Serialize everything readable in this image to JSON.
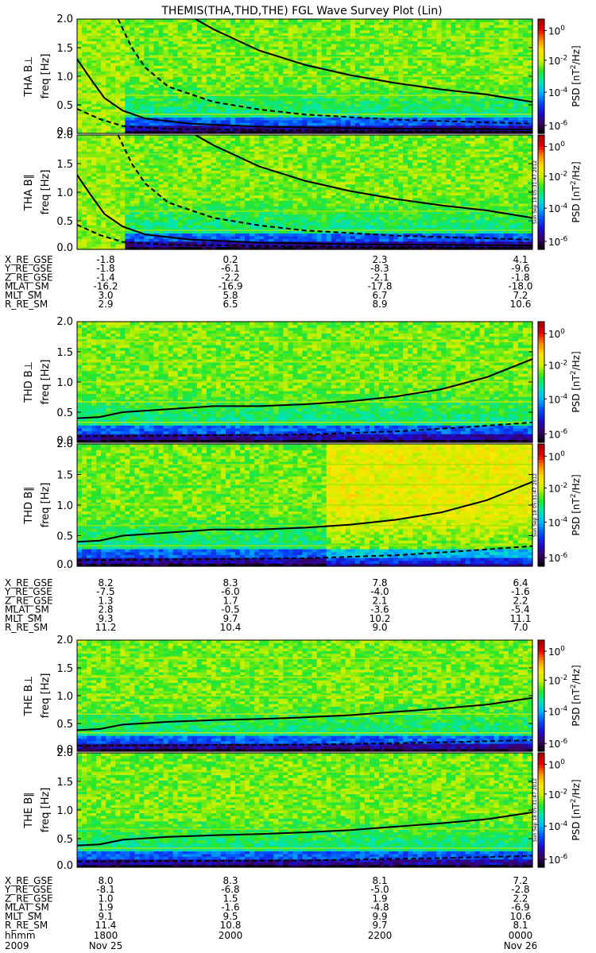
{
  "title": "THEMIS(THA,THD,THE) FGL Wave Survey Plot (Lin)",
  "chart_data": {
    "type": "heatmap",
    "title": "THEMIS(THA,THD,THE) FGL Wave Survey Plot (Lin)",
    "ylim": [
      0,
      2.0
    ],
    "yticks": [
      "0.0",
      "0.5",
      "1.0",
      "1.5",
      "2.0"
    ],
    "colorbar": {
      "label": "PSD [nT^2/Hz]",
      "ticks": [
        "10^-6",
        "10^-4",
        "10^-2",
        "10^0"
      ],
      "colormap": [
        "#000000",
        "#3a0063",
        "#1c0ccf",
        "#0050ff",
        "#00b4ff",
        "#00e6b4",
        "#28e628",
        "#c8f000",
        "#ffe600",
        "#ff8c00",
        "#e60000",
        "#a00000"
      ]
    },
    "stamp": "Sun Sep 18 05:31:47 2012",
    "panels": [
      {
        "ylabel": "THA B⊥",
        "yunit": "freq [Hz]"
      },
      {
        "ylabel": "THA B∥",
        "yunit": "freq [Hz]"
      },
      {
        "ylabel": "THD B⊥",
        "yunit": "freq [Hz]"
      },
      {
        "ylabel": "THD B∥",
        "yunit": "freq [Hz]"
      },
      {
        "ylabel": "THE B⊥",
        "yunit": "freq [Hz]"
      },
      {
        "ylabel": "THE B∥",
        "yunit": "freq [Hz]"
      }
    ],
    "ephemeris": [
      {
        "probe": "THA",
        "rows": [
          {
            "name": "X_RE_GSE",
            "values": [
              "-1.8",
              "0.2",
              "2.3",
              "4.1"
            ]
          },
          {
            "name": "Y_RE_GSE",
            "values": [
              "-1.8",
              "-6.1",
              "-8.3",
              "-9.6"
            ]
          },
          {
            "name": "Z_RE_GSE",
            "values": [
              "-1.4",
              "-2.2",
              "-2.1",
              "-1.8"
            ]
          },
          {
            "name": "MLAT_SM",
            "values": [
              "-16.2",
              "-16.9",
              "-17.8",
              "-18.0"
            ]
          },
          {
            "name": "MLT_SM",
            "values": [
              "3.0",
              "5.8",
              "6.7",
              "7.2"
            ]
          },
          {
            "name": "R_RE_SM",
            "values": [
              "2.9",
              "6.5",
              "8.9",
              "10.6"
            ]
          }
        ]
      },
      {
        "probe": "THD",
        "rows": [
          {
            "name": "X_RE_GSE",
            "values": [
              "8.2",
              "8.3",
              "7.8",
              "6.4"
            ]
          },
          {
            "name": "Y_RE_GSE",
            "values": [
              "-7.5",
              "-6.0",
              "-4.0",
              "-1.6"
            ]
          },
          {
            "name": "Z_RE_GSE",
            "values": [
              "1.3",
              "1.7",
              "2.1",
              "2.2"
            ]
          },
          {
            "name": "MLAT_SM",
            "values": [
              "2.8",
              "-0.5",
              "-3.6",
              "-5.4"
            ]
          },
          {
            "name": "MLT_SM",
            "values": [
              "9.3",
              "9.7",
              "10.2",
              "11.1"
            ]
          },
          {
            "name": "R_RE_SM",
            "values": [
              "11.2",
              "10.4",
              "9.0",
              "7.0"
            ]
          }
        ]
      },
      {
        "probe": "THE",
        "rows": [
          {
            "name": "X_RE_GSE",
            "values": [
              "8.0",
              "8.3",
              "8.1",
              "7.2"
            ]
          },
          {
            "name": "Y_RE_GSE",
            "values": [
              "-8.1",
              "-6.8",
              "-5.0",
              "-2.8"
            ]
          },
          {
            "name": "Z_RE_GSE",
            "values": [
              "1.0",
              "1.5",
              "1.9",
              "2.2"
            ]
          },
          {
            "name": "MLAT_SM",
            "values": [
              "1.9",
              "-1.6",
              "-4.8",
              "-6.9"
            ]
          },
          {
            "name": "MLT_SM",
            "values": [
              "9.1",
              "9.5",
              "9.9",
              "10.6"
            ]
          },
          {
            "name": "R_RE_SM",
            "values": [
              "11.4",
              "10.8",
              "9.7",
              "8.1"
            ]
          }
        ]
      }
    ],
    "time_axis": {
      "row1_label": "hhmm",
      "row2_label": "2009",
      "ticks": [
        "1800",
        "2000",
        "2200",
        "0000"
      ],
      "dates": [
        "Nov 25",
        "Nov 26"
      ]
    },
    "curves": {
      "THA": {
        "solid_upper": [
          [
            0.26,
            2.0
          ],
          [
            0.3,
            1.82
          ],
          [
            0.4,
            1.45
          ],
          [
            0.5,
            1.2
          ],
          [
            0.6,
            1.02
          ],
          [
            0.7,
            0.88
          ],
          [
            0.8,
            0.77
          ],
          [
            0.9,
            0.68
          ],
          [
            1.0,
            0.55
          ]
        ],
        "dashed": [
          [
            0.09,
            2.0
          ],
          [
            0.12,
            1.5
          ],
          [
            0.15,
            1.15
          ],
          [
            0.2,
            0.82
          ],
          [
            0.3,
            0.55
          ],
          [
            0.4,
            0.42
          ],
          [
            0.5,
            0.33
          ],
          [
            0.7,
            0.24
          ],
          [
            1.0,
            0.17
          ]
        ],
        "solid_lower": [
          [
            0.0,
            1.3
          ],
          [
            0.03,
            0.95
          ],
          [
            0.06,
            0.62
          ],
          [
            0.1,
            0.4
          ],
          [
            0.15,
            0.26
          ],
          [
            0.25,
            0.17
          ],
          [
            0.4,
            0.12
          ],
          [
            0.6,
            0.09
          ],
          [
            1.0,
            0.07
          ]
        ],
        "dashed_lower": [
          [
            0.0,
            0.43
          ],
          [
            0.05,
            0.25
          ],
          [
            0.1,
            0.13
          ],
          [
            0.2,
            0.08
          ],
          [
            0.5,
            0.05
          ],
          [
            1.0,
            0.03
          ]
        ]
      },
      "THD": {
        "solid": [
          [
            0.0,
            0.4
          ],
          [
            0.05,
            0.42
          ],
          [
            0.1,
            0.5
          ],
          [
            0.2,
            0.55
          ],
          [
            0.3,
            0.6
          ],
          [
            0.4,
            0.6
          ],
          [
            0.5,
            0.63
          ],
          [
            0.6,
            0.68
          ],
          [
            0.7,
            0.76
          ],
          [
            0.8,
            0.88
          ],
          [
            0.9,
            1.08
          ],
          [
            1.0,
            1.38
          ]
        ],
        "dashed": [
          [
            0.0,
            0.1
          ],
          [
            0.5,
            0.13
          ],
          [
            0.7,
            0.18
          ],
          [
            0.85,
            0.25
          ],
          [
            1.0,
            0.33
          ]
        ]
      },
      "THE": {
        "solid": [
          [
            0.0,
            0.38
          ],
          [
            0.05,
            0.4
          ],
          [
            0.1,
            0.48
          ],
          [
            0.2,
            0.53
          ],
          [
            0.3,
            0.56
          ],
          [
            0.4,
            0.58
          ],
          [
            0.5,
            0.61
          ],
          [
            0.6,
            0.65
          ],
          [
            0.7,
            0.71
          ],
          [
            0.8,
            0.77
          ],
          [
            0.9,
            0.84
          ],
          [
            1.0,
            0.96
          ]
        ],
        "dashed": [
          [
            0.0,
            0.1
          ],
          [
            0.5,
            0.12
          ],
          [
            0.8,
            0.16
          ],
          [
            1.0,
            0.2
          ]
        ]
      }
    }
  }
}
